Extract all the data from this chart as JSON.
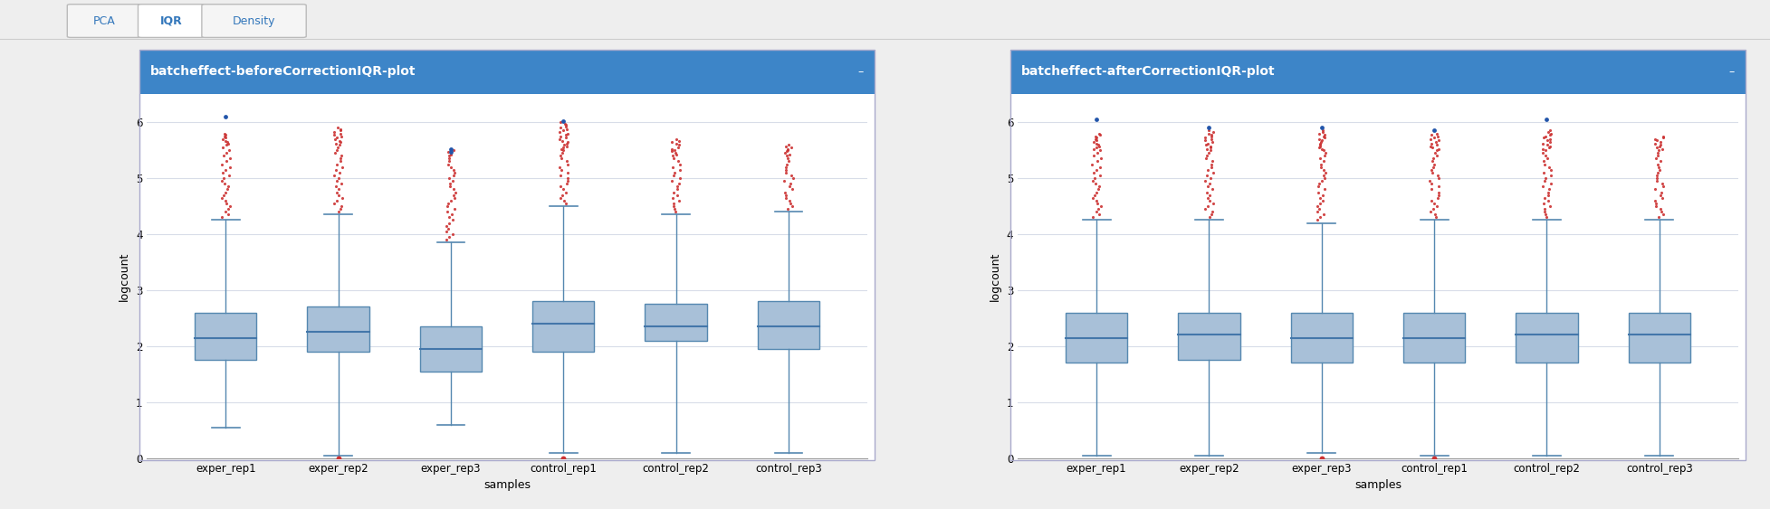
{
  "fig_width": 19.55,
  "fig_height": 5.63,
  "tab_labels": [
    "PCA",
    "IQR",
    "Density"
  ],
  "tab_active": "IQR",
  "panel1_title": "batcheffect-beforeCorrectionIQR-plot",
  "panel2_title": "batcheffect-afterCorrectionIQR-plot",
  "categories": [
    "exper_rep1",
    "exper_rep2",
    "exper_rep3",
    "control_rep1",
    "control_rep2",
    "control_rep3"
  ],
  "ylabel": "logcount",
  "xlabel": "samples",
  "ylim": [
    0,
    6.5
  ],
  "yticks": [
    0,
    1,
    2,
    3,
    4,
    5,
    6
  ],
  "header_color": "#3d85c8",
  "header_text_color": "#ffffff",
  "box_facecolor": "#a8c0d8",
  "box_edgecolor": "#5588b0",
  "median_color": "#4477aa",
  "whisker_color": "#5588b0",
  "flier_red_color": "#cc3333",
  "flier_blue_color": "#2255aa",
  "bg_color": "#ffffff",
  "panel_border_color": "#aaaacc",
  "grid_color": "#d8dde8",
  "tab_active_bg": "#ffffff",
  "tab_inactive_bg": "#f5f5f5",
  "tab_text_color": "#3377bb",
  "fig_bg": "#eeeeee",
  "before_boxes": [
    {
      "q1": 1.75,
      "median": 2.15,
      "q3": 2.6,
      "whislo": 0.55,
      "whishi": 4.25,
      "fliers_red_hi": [
        4.3,
        4.35,
        4.4,
        4.45,
        4.5,
        4.55,
        4.6,
        4.65,
        4.7,
        4.75,
        4.8,
        4.85,
        4.9,
        4.95,
        5.0,
        5.05,
        5.1,
        5.15,
        5.2,
        5.25,
        5.3,
        5.35,
        5.4,
        5.45,
        5.5,
        5.55,
        5.6,
        5.62,
        5.65,
        5.67,
        5.7,
        5.72,
        5.75,
        5.77,
        5.8
      ],
      "fliers_blue_hi": [
        6.1
      ],
      "fliers_red_lo": [],
      "fliers_blue_lo": []
    },
    {
      "q1": 1.9,
      "median": 2.25,
      "q3": 2.7,
      "whislo": 0.05,
      "whishi": 4.35,
      "fliers_red_hi": [
        4.4,
        4.45,
        4.5,
        4.55,
        4.6,
        4.65,
        4.7,
        4.75,
        4.8,
        4.85,
        4.9,
        4.95,
        5.0,
        5.05,
        5.1,
        5.15,
        5.2,
        5.25,
        5.3,
        5.35,
        5.4,
        5.45,
        5.5,
        5.55,
        5.6,
        5.62,
        5.65,
        5.67,
        5.7,
        5.72,
        5.75,
        5.78,
        5.8,
        5.82,
        5.85,
        5.87,
        5.9
      ],
      "fliers_blue_hi": [],
      "fliers_red_lo": [
        0.0
      ],
      "fliers_blue_lo": []
    },
    {
      "q1": 1.55,
      "median": 1.95,
      "q3": 2.35,
      "whislo": 0.6,
      "whishi": 3.85,
      "fliers_red_hi": [
        3.9,
        3.95,
        4.0,
        4.05,
        4.1,
        4.15,
        4.2,
        4.25,
        4.3,
        4.35,
        4.4,
        4.45,
        4.5,
        4.55,
        4.6,
        4.65,
        4.7,
        4.75,
        4.8,
        4.85,
        4.9,
        4.95,
        5.0,
        5.05,
        5.1,
        5.15,
        5.2,
        5.25,
        5.3,
        5.35,
        5.4,
        5.42,
        5.45,
        5.47,
        5.5
      ],
      "fliers_blue_hi": [
        5.47,
        5.52
      ],
      "fliers_red_lo": [],
      "fliers_blue_lo": []
    },
    {
      "q1": 1.9,
      "median": 2.4,
      "q3": 2.8,
      "whislo": 0.1,
      "whishi": 4.5,
      "fliers_red_hi": [
        4.55,
        4.6,
        4.65,
        4.7,
        4.75,
        4.8,
        4.85,
        4.9,
        4.95,
        5.0,
        5.05,
        5.1,
        5.15,
        5.2,
        5.25,
        5.3,
        5.35,
        5.4,
        5.45,
        5.5,
        5.52,
        5.55,
        5.57,
        5.6,
        5.62,
        5.65,
        5.67,
        5.7,
        5.72,
        5.75,
        5.78,
        5.8,
        5.82,
        5.85,
        5.88,
        5.9,
        5.92,
        5.95,
        5.97,
        6.0
      ],
      "fliers_blue_hi": [
        6.02
      ],
      "fliers_red_lo": [
        0.0
      ],
      "fliers_blue_lo": []
    },
    {
      "q1": 2.1,
      "median": 2.35,
      "q3": 2.75,
      "whislo": 0.1,
      "whishi": 4.35,
      "fliers_red_hi": [
        4.4,
        4.45,
        4.5,
        4.55,
        4.6,
        4.65,
        4.7,
        4.75,
        4.8,
        4.85,
        4.9,
        4.95,
        5.0,
        5.05,
        5.1,
        5.15,
        5.2,
        5.25,
        5.3,
        5.35,
        5.4,
        5.42,
        5.45,
        5.48,
        5.5,
        5.52,
        5.55,
        5.6,
        5.62,
        5.65,
        5.67,
        5.7
      ],
      "fliers_blue_hi": [],
      "fliers_red_lo": [],
      "fliers_blue_lo": []
    },
    {
      "q1": 1.95,
      "median": 2.35,
      "q3": 2.8,
      "whislo": 0.1,
      "whishi": 4.4,
      "fliers_red_hi": [
        4.45,
        4.5,
        4.55,
        4.6,
        4.65,
        4.7,
        4.75,
        4.8,
        4.85,
        4.9,
        4.95,
        5.0,
        5.05,
        5.1,
        5.15,
        5.2,
        5.25,
        5.3,
        5.35,
        5.4,
        5.42,
        5.45,
        5.48,
        5.5,
        5.52,
        5.55,
        5.57,
        5.6
      ],
      "fliers_blue_hi": [],
      "fliers_red_lo": [],
      "fliers_blue_lo": []
    }
  ],
  "after_boxes": [
    {
      "q1": 1.7,
      "median": 2.15,
      "q3": 2.6,
      "whislo": 0.05,
      "whishi": 4.25,
      "fliers_red_hi": [
        4.3,
        4.35,
        4.4,
        4.45,
        4.5,
        4.55,
        4.6,
        4.65,
        4.7,
        4.75,
        4.8,
        4.85,
        4.9,
        4.95,
        5.0,
        5.05,
        5.1,
        5.15,
        5.2,
        5.25,
        5.3,
        5.35,
        5.4,
        5.45,
        5.5,
        5.52,
        5.55,
        5.57,
        5.6,
        5.62,
        5.65,
        5.68,
        5.7,
        5.73,
        5.75,
        5.78,
        5.8
      ],
      "fliers_blue_hi": [
        6.05
      ],
      "fliers_red_lo": [],
      "fliers_blue_lo": []
    },
    {
      "q1": 1.75,
      "median": 2.2,
      "q3": 2.6,
      "whislo": 0.05,
      "whishi": 4.25,
      "fliers_red_hi": [
        4.3,
        4.35,
        4.4,
        4.45,
        4.5,
        4.55,
        4.6,
        4.65,
        4.7,
        4.75,
        4.8,
        4.85,
        4.9,
        4.95,
        5.0,
        5.05,
        5.1,
        5.15,
        5.2,
        5.25,
        5.3,
        5.35,
        5.4,
        5.45,
        5.5,
        5.52,
        5.55,
        5.57,
        5.6,
        5.62,
        5.65,
        5.68,
        5.7,
        5.73,
        5.75,
        5.78,
        5.8,
        5.82,
        5.85
      ],
      "fliers_blue_hi": [
        5.9
      ],
      "fliers_red_lo": [],
      "fliers_blue_lo": []
    },
    {
      "q1": 1.7,
      "median": 2.15,
      "q3": 2.6,
      "whislo": 0.1,
      "whishi": 4.2,
      "fliers_red_hi": [
        4.25,
        4.3,
        4.35,
        4.4,
        4.45,
        4.5,
        4.55,
        4.6,
        4.65,
        4.7,
        4.75,
        4.8,
        4.85,
        4.9,
        4.95,
        5.0,
        5.05,
        5.1,
        5.15,
        5.2,
        5.25,
        5.3,
        5.35,
        5.4,
        5.45,
        5.5,
        5.52,
        5.55,
        5.57,
        5.6,
        5.62,
        5.65,
        5.68,
        5.7,
        5.73,
        5.75,
        5.78,
        5.8,
        5.82,
        5.85
      ],
      "fliers_blue_hi": [
        5.9
      ],
      "fliers_red_lo": [
        0.0
      ],
      "fliers_blue_lo": []
    },
    {
      "q1": 1.7,
      "median": 2.15,
      "q3": 2.6,
      "whislo": 0.05,
      "whishi": 4.25,
      "fliers_red_hi": [
        4.3,
        4.35,
        4.4,
        4.45,
        4.5,
        4.55,
        4.6,
        4.65,
        4.7,
        4.75,
        4.8,
        4.85,
        4.9,
        4.95,
        5.0,
        5.05,
        5.1,
        5.15,
        5.2,
        5.25,
        5.3,
        5.35,
        5.4,
        5.45,
        5.5,
        5.52,
        5.55,
        5.57,
        5.6,
        5.62,
        5.65,
        5.68,
        5.7,
        5.73,
        5.75,
        5.78,
        5.8
      ],
      "fliers_blue_hi": [
        5.85
      ],
      "fliers_red_lo": [
        0.0
      ],
      "fliers_blue_lo": []
    },
    {
      "q1": 1.7,
      "median": 2.2,
      "q3": 2.6,
      "whislo": 0.05,
      "whishi": 4.25,
      "fliers_red_hi": [
        4.3,
        4.35,
        4.4,
        4.45,
        4.5,
        4.55,
        4.6,
        4.65,
        4.7,
        4.75,
        4.8,
        4.85,
        4.9,
        4.95,
        5.0,
        5.05,
        5.1,
        5.15,
        5.2,
        5.25,
        5.3,
        5.35,
        5.4,
        5.45,
        5.5,
        5.52,
        5.55,
        5.57,
        5.6,
        5.62,
        5.65,
        5.68,
        5.7,
        5.73,
        5.75,
        5.78,
        5.8,
        5.82,
        5.85
      ],
      "fliers_blue_hi": [
        6.05
      ],
      "fliers_red_lo": [],
      "fliers_blue_lo": []
    },
    {
      "q1": 1.7,
      "median": 2.2,
      "q3": 2.6,
      "whislo": 0.05,
      "whishi": 4.25,
      "fliers_red_hi": [
        4.3,
        4.35,
        4.4,
        4.45,
        4.5,
        4.55,
        4.6,
        4.65,
        4.7,
        4.75,
        4.8,
        4.85,
        4.9,
        4.95,
        5.0,
        5.05,
        5.1,
        5.15,
        5.2,
        5.25,
        5.3,
        5.35,
        5.4,
        5.45,
        5.5,
        5.52,
        5.55,
        5.57,
        5.6,
        5.62,
        5.65,
        5.68,
        5.7,
        5.73,
        5.75
      ],
      "fliers_blue_hi": [],
      "fliers_red_lo": [],
      "fliers_blue_lo": []
    }
  ]
}
